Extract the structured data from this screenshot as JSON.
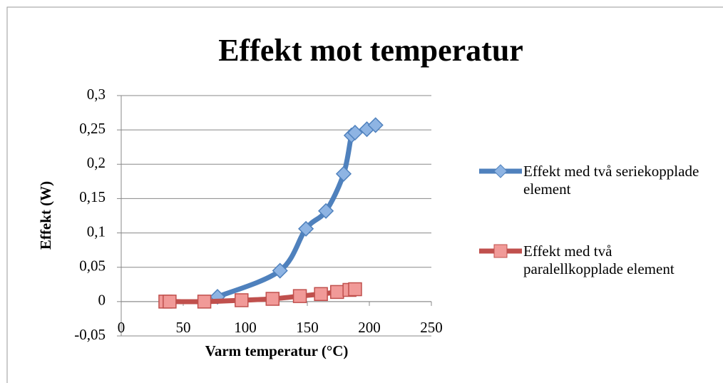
{
  "chart_data": {
    "type": "line",
    "title": "Effekt mot temperatur",
    "xlabel": "Varm temperatur (°C)",
    "ylabel": "Effekt (W)",
    "xlim": [
      0,
      250
    ],
    "xticks": [
      0,
      50,
      100,
      150,
      200,
      250
    ],
    "ylim": [
      -0.05,
      0.3
    ],
    "yticks": [
      {
        "value": -0.05,
        "label": "-0,05"
      },
      0,
      {
        "value": 0.05,
        "label": "0,05"
      },
      {
        "value": 0.1,
        "label": "0,1"
      },
      {
        "value": 0.15,
        "label": "0,15"
      },
      {
        "value": 0.2,
        "label": "0,2"
      },
      {
        "value": 0.25,
        "label": "0,25"
      },
      {
        "value": 0.3,
        "label": "0,3"
      }
    ],
    "grid": true,
    "legend": "right",
    "series": [
      {
        "name": "Effekt med två seriekopplade element",
        "color": "#4f81bd",
        "marker": "diamond",
        "x": [
          77.6,
          128,
          148.9,
          165,
          179.3,
          185.6,
          188.5,
          198,
          205
        ],
        "values": [
          0.007,
          0.045,
          0.106,
          0.132,
          0.186,
          0.242,
          0.246,
          0.251,
          0.257
        ]
      },
      {
        "name": "Effekt med två paralellkopplade element",
        "color": "#c0504d",
        "marker": "square",
        "x": [
          35.6,
          39,
          67,
          97,
          122,
          144,
          161,
          174,
          184,
          188.5
        ],
        "values": [
          0,
          0,
          0,
          0.002,
          0.004,
          0.008,
          0.011,
          0.014,
          0.017,
          0.018
        ]
      }
    ]
  }
}
